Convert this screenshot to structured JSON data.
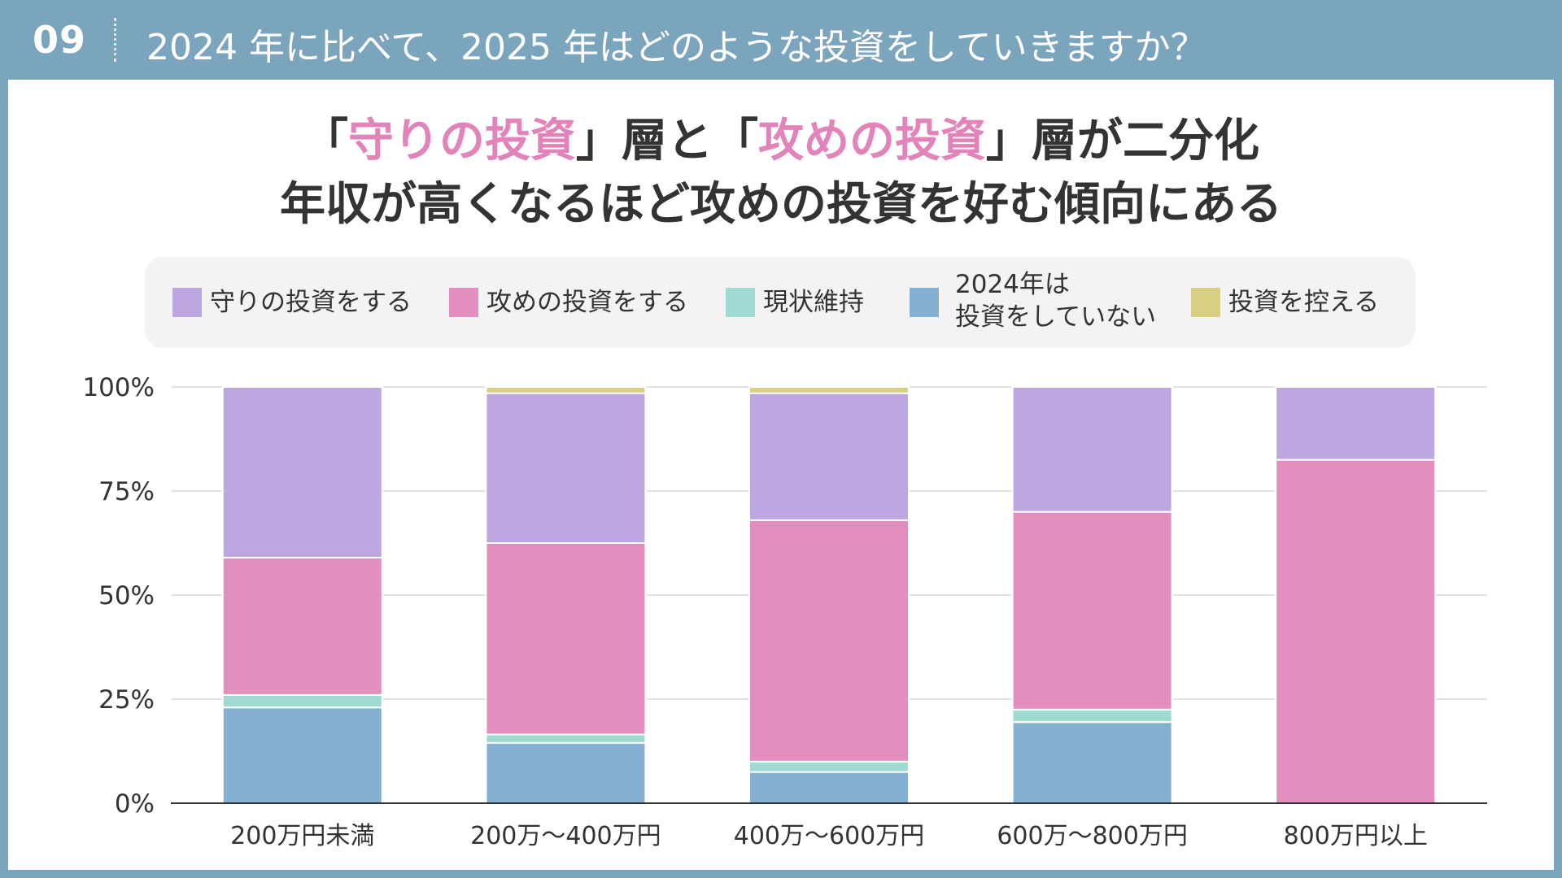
{
  "header": {
    "slide_number": "09",
    "title": "2024 年に比べて、2025 年はどのような投資をしていきますか？"
  },
  "headline": {
    "line1_parts": [
      "「",
      "守りの投資",
      "」層と「",
      "攻めの投資",
      "」層が二分化"
    ],
    "line2": "年収が高くなるほど攻めの投資を好む傾向にある"
  },
  "colors": {
    "background": "#7ba5bd",
    "highlight": "#e283ba",
    "defensive": "#bea6e0",
    "aggressive": "#e28fbf",
    "maintain": "#9ed9d2",
    "not_investing": "#85b0d1",
    "refrain": "#d9cf83"
  },
  "legend": [
    {
      "key": "defensive",
      "label": "守りの投資をする",
      "icon": "square-swatch"
    },
    {
      "key": "aggressive",
      "label": "攻めの投資をする",
      "icon": "square-swatch"
    },
    {
      "key": "maintain",
      "label": "現状維持",
      "icon": "square-swatch"
    },
    {
      "key": "not_investing",
      "label_line1": "2024年は",
      "label_line2": "投資をしていない",
      "icon": "square-swatch"
    },
    {
      "key": "refrain",
      "label": "投資を控える",
      "icon": "square-swatch"
    }
  ],
  "chart_data": {
    "type": "bar",
    "stacked": true,
    "categories": [
      "200万円未満",
      "200万～400万円",
      "400万～600万円",
      "600万～800万円",
      "800万円以上"
    ],
    "series": [
      {
        "key": "not_investing",
        "name": "2024年は投資をしていない",
        "values": [
          23,
          14.5,
          7.5,
          19.5,
          0
        ]
      },
      {
        "key": "maintain",
        "name": "現状維持",
        "values": [
          3,
          2,
          2.5,
          3,
          0
        ]
      },
      {
        "key": "aggressive",
        "name": "攻めの投資をする",
        "values": [
          33,
          46,
          58,
          47.5,
          82.5
        ]
      },
      {
        "key": "defensive",
        "name": "守りの投資をする",
        "values": [
          41,
          36,
          30.5,
          30,
          17.5
        ]
      },
      {
        "key": "refrain",
        "name": "投資を控える",
        "values": [
          0,
          1.5,
          1.5,
          0,
          0
        ]
      }
    ],
    "ylim": [
      0,
      100
    ],
    "yticks": [
      0,
      25,
      50,
      75,
      100
    ],
    "ytick_labels": [
      "0%",
      "25%",
      "50%",
      "75%",
      "100%"
    ],
    "grid": true,
    "title": "",
    "xlabel": "",
    "ylabel": ""
  }
}
